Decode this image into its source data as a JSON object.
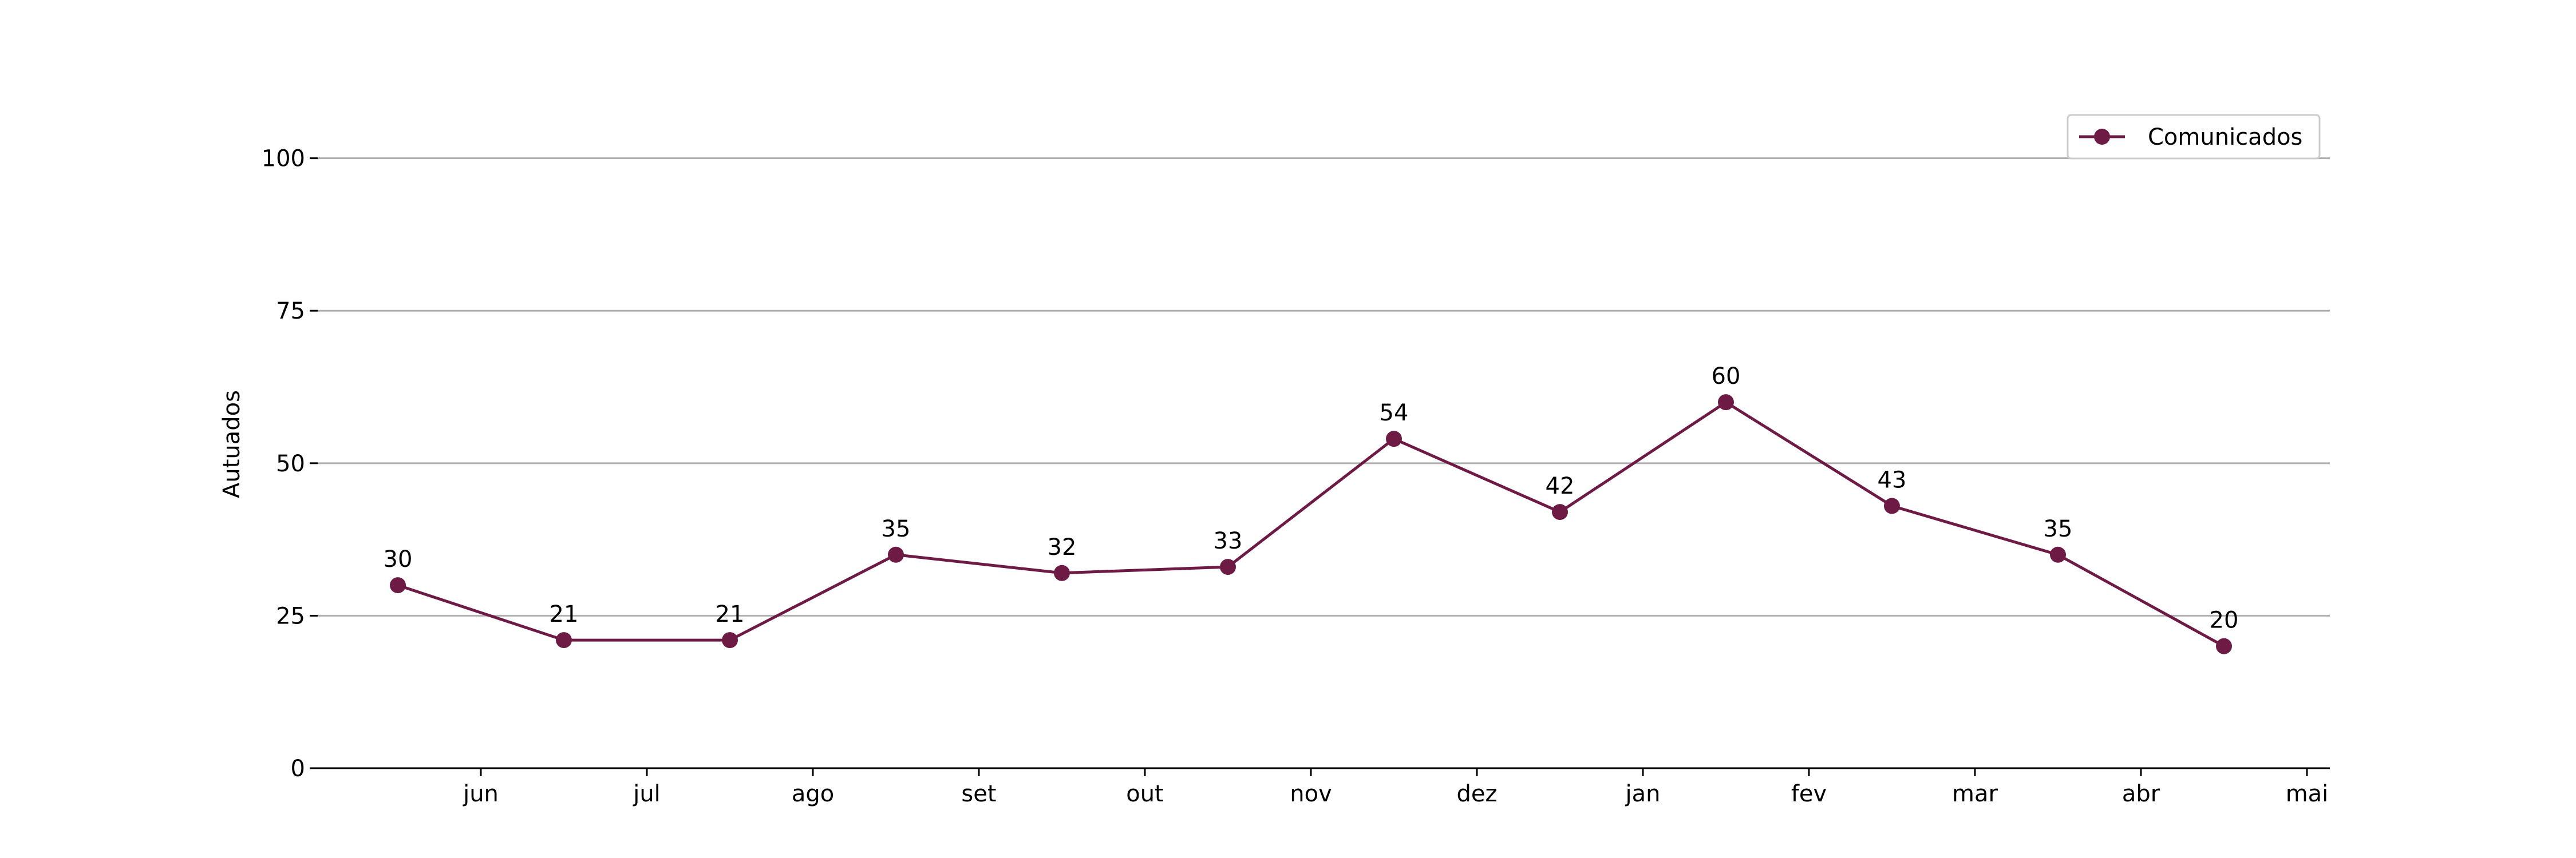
{
  "chart_data": {
    "type": "line",
    "categories": [
      "jun",
      "jul",
      "ago",
      "set",
      "out",
      "nov",
      "dez",
      "jan",
      "fev",
      "mar",
      "abr",
      "mai"
    ],
    "series": [
      {
        "name": "Comunicados",
        "values": [
          30,
          21,
          21,
          35,
          32,
          33,
          54,
          42,
          60,
          43,
          35,
          20
        ],
        "color": "#6d1a45"
      }
    ],
    "xlabel": "",
    "ylabel": "Autuados",
    "ylim": [
      0,
      110
    ],
    "yticks": [
      0,
      25,
      50,
      75,
      100
    ],
    "grid": "horizontal",
    "legend_position": "top-right",
    "points_between_ticks": true
  }
}
